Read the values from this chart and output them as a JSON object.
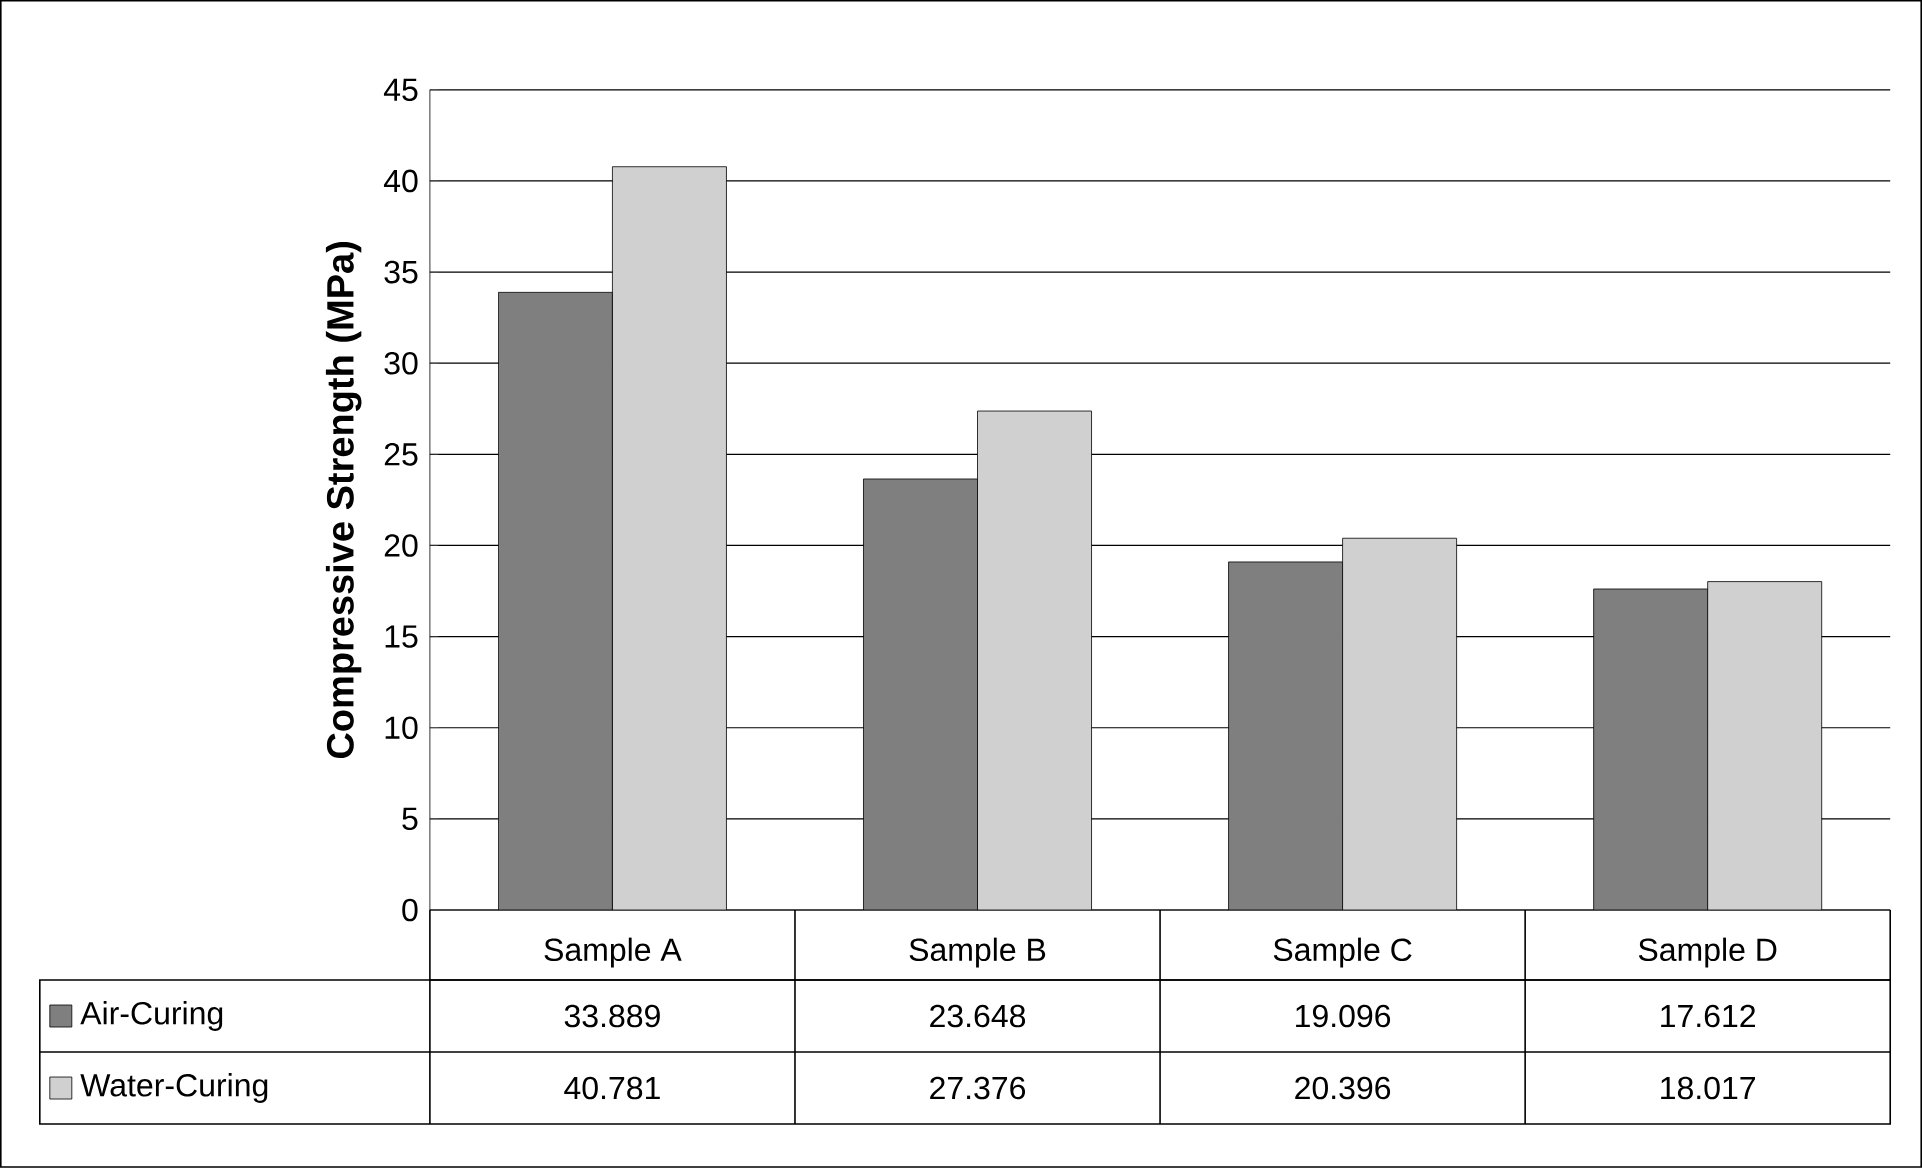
{
  "chart_data": {
    "type": "bar",
    "ylabel": "Compressive Strength (MPa)",
    "categories": [
      "Sample A",
      "Sample B",
      "Sample C",
      "Sample D"
    ],
    "series": [
      {
        "name": "Air-Curing",
        "color": "#7f7f7f",
        "values": [
          33.889,
          23.648,
          19.096,
          17.612
        ]
      },
      {
        "name": "Water-Curing",
        "color": "#d0d0d0",
        "values": [
          40.781,
          27.376,
          20.396,
          18.017
        ]
      }
    ],
    "ylim": [
      0,
      45
    ],
    "yticks": [
      0,
      5,
      10,
      15,
      20,
      25,
      30,
      35,
      40,
      45
    ],
    "grid": "y",
    "legend": "bottom",
    "data_labels": true
  }
}
